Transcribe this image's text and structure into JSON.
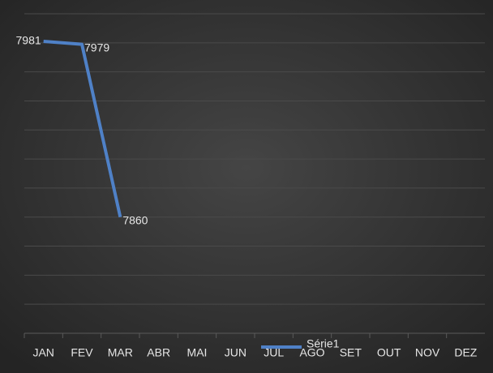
{
  "chart_data": {
    "type": "line",
    "categories": [
      "JAN",
      "FEV",
      "MAR",
      "ABR",
      "MAI",
      "JUN",
      "JUL",
      "AGO",
      "SET",
      "OUT",
      "NOV",
      "DEZ"
    ],
    "series": [
      {
        "name": "Série1",
        "color": "#4f81c7",
        "values": [
          7981,
          7979,
          7860,
          null,
          null,
          null,
          null,
          null,
          null,
          null,
          null,
          null
        ]
      }
    ],
    "ylim": [
      7780,
      8000
    ],
    "yticks": [
      7780,
      7800,
      7820,
      7840,
      7860,
      7880,
      7900,
      7920,
      7940,
      7960,
      7980,
      8000
    ],
    "grid": true,
    "legend": "bottom"
  }
}
